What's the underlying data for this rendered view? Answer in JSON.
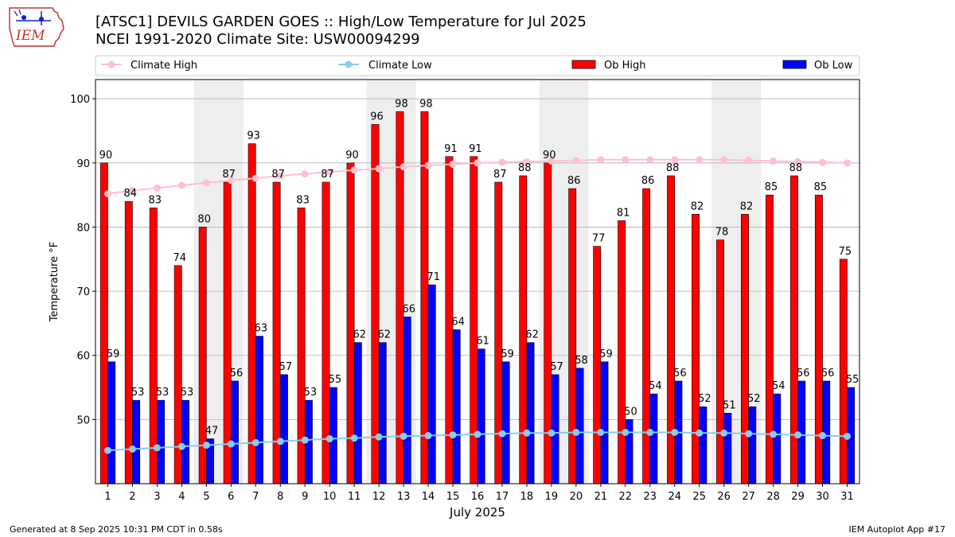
{
  "header": {
    "title_line1": "[ATSC1] DEVILS GARDEN GOES :: High/Low Temperature for Jul 2025",
    "title_line2": "NCEI 1991-2020 Climate Site: USW00094299",
    "logo_text": "IEM"
  },
  "footer": {
    "generated": "Generated at 8 Sep 2025 10:31 PM CDT in 0.58s",
    "app": "IEM Autoplot App #17"
  },
  "colors": {
    "ob_high": "#ff0000",
    "ob_low": "#0000ff",
    "climate_high": "#ffc0cb",
    "climate_low": "#87ceeb",
    "weekend_shade": "#eeeeee",
    "grid": "#b0b0b0"
  },
  "chart_data": {
    "type": "bar",
    "xlabel": "July 2025",
    "ylabel": "Temperature °F",
    "ylim": [
      40,
      103
    ],
    "yticks": [
      50,
      60,
      70,
      80,
      90,
      100
    ],
    "grid": "horizontal",
    "legend_placement": "top",
    "categories": [
      "1",
      "2",
      "3",
      "4",
      "5",
      "6",
      "7",
      "8",
      "9",
      "10",
      "11",
      "12",
      "13",
      "14",
      "15",
      "16",
      "17",
      "18",
      "19",
      "20",
      "21",
      "22",
      "23",
      "24",
      "25",
      "26",
      "27",
      "28",
      "29",
      "30",
      "31"
    ],
    "shaded_weekends": [
      [
        5,
        6
      ],
      [
        12,
        13
      ],
      [
        19,
        20
      ],
      [
        26,
        27
      ]
    ],
    "series": [
      {
        "name": "Ob High",
        "kind": "bar",
        "values": [
          90,
          84,
          83,
          74,
          80,
          87,
          93,
          87,
          83,
          87,
          90,
          96,
          98,
          98,
          91,
          91,
          87,
          88,
          90,
          86,
          77,
          81,
          86,
          88,
          82,
          78,
          82,
          85,
          88,
          85,
          75
        ]
      },
      {
        "name": "Ob Low",
        "kind": "bar",
        "values": [
          59,
          53,
          53,
          53,
          47,
          56,
          63,
          57,
          53,
          55,
          62,
          62,
          66,
          71,
          64,
          61,
          59,
          62,
          57,
          58,
          59,
          50,
          54,
          56,
          52,
          51,
          52,
          54,
          56,
          56,
          55
        ]
      },
      {
        "name": "Climate High",
        "kind": "line",
        "values": [
          85.2,
          85.7,
          86.1,
          86.5,
          86.9,
          87.3,
          87.6,
          88.0,
          88.3,
          88.6,
          88.9,
          89.1,
          89.4,
          89.6,
          89.8,
          90.0,
          90.1,
          90.2,
          90.3,
          90.4,
          90.5,
          90.5,
          90.5,
          90.5,
          90.5,
          90.5,
          90.4,
          90.3,
          90.2,
          90.1,
          90.0
        ]
      },
      {
        "name": "Climate Low",
        "kind": "line",
        "values": [
          45.2,
          45.4,
          45.6,
          45.8,
          46.0,
          46.2,
          46.4,
          46.6,
          46.8,
          47.0,
          47.1,
          47.3,
          47.4,
          47.5,
          47.6,
          47.7,
          47.8,
          47.9,
          47.9,
          48.0,
          48.0,
          48.0,
          48.0,
          48.0,
          47.9,
          47.9,
          47.8,
          47.7,
          47.6,
          47.5,
          47.4
        ]
      }
    ]
  }
}
